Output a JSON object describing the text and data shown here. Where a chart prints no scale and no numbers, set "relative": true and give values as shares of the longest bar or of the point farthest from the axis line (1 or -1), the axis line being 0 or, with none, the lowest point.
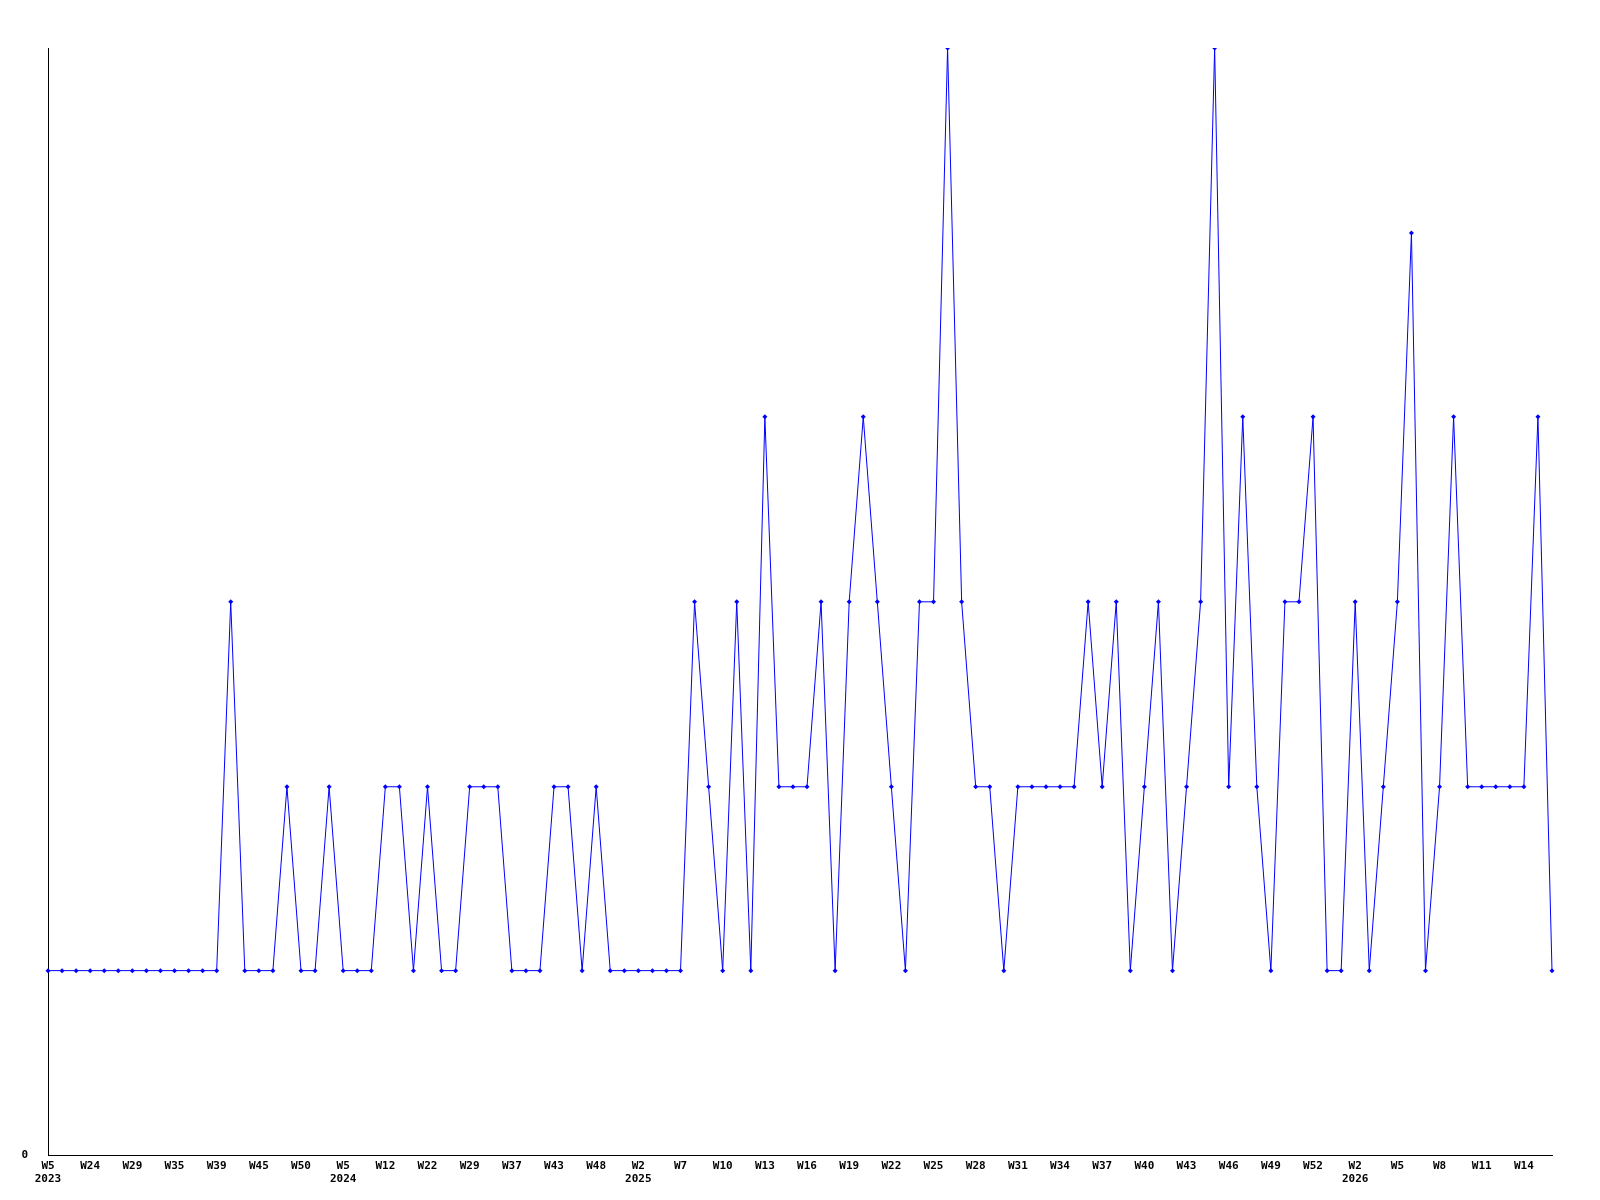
{
  "chart_data": {
    "type": "line",
    "relative": true,
    "color": "#0000ff",
    "marker": "diamond",
    "line_style": "solid",
    "grid": false,
    "legend": false,
    "annotations": [
      "0"
    ],
    "categories": [
      "W5\n2023",
      null,
      null,
      "W24",
      null,
      null,
      "W29",
      null,
      null,
      "W35",
      null,
      null,
      "W39",
      null,
      null,
      "W45",
      null,
      null,
      "W50",
      null,
      null,
      "W5\n2024",
      null,
      null,
      "W12",
      null,
      null,
      "W22",
      null,
      null,
      "W29",
      null,
      null,
      "W37",
      null,
      null,
      "W43",
      null,
      null,
      "W48",
      null,
      null,
      "W2\n2025",
      null,
      null,
      "W7",
      null,
      null,
      "W10",
      null,
      null,
      "W13",
      null,
      null,
      "W16",
      null,
      null,
      "W19",
      null,
      null,
      "W22",
      null,
      null,
      "W25",
      null,
      null,
      "W28",
      null,
      null,
      "W31",
      null,
      null,
      "W34",
      null,
      null,
      "W37",
      null,
      null,
      "W40",
      null,
      null,
      "W43",
      null,
      null,
      "W46",
      null,
      null,
      "W49",
      null,
      null,
      "W52",
      null,
      null,
      "W2\n2026",
      null,
      null,
      "W5",
      null,
      null,
      "W8",
      null,
      null,
      "W11",
      null,
      null,
      "W14",
      null,
      null
    ],
    "values": [
      0.167,
      0.167,
      0.167,
      0.167,
      0.167,
      0.167,
      0.167,
      0.167,
      0.167,
      0.167,
      0.167,
      0.167,
      0.167,
      0.5,
      0.167,
      0.167,
      0.167,
      0.333,
      0.167,
      0.167,
      0.333,
      0.167,
      0.167,
      0.167,
      0.333,
      0.333,
      0.167,
      0.333,
      0.167,
      0.167,
      0.333,
      0.333,
      0.333,
      0.167,
      0.167,
      0.167,
      0.333,
      0.333,
      0.167,
      0.333,
      0.167,
      0.167,
      0.167,
      0.167,
      0.167,
      0.167,
      0.5,
      0.333,
      0.167,
      0.5,
      0.167,
      0.667,
      0.333,
      0.333,
      0.333,
      0.5,
      0.167,
      0.5,
      0.667,
      0.5,
      0.333,
      0.167,
      0.5,
      0.5,
      1,
      0.5,
      0.333,
      0.333,
      0.167,
      0.333,
      0.333,
      0.333,
      0.333,
      0.333,
      0.5,
      0.333,
      0.5,
      0.167,
      0.333,
      0.5,
      0.167,
      0.333,
      0.5,
      1,
      0.333,
      0.667,
      0.333,
      0.167,
      0.5,
      0.5,
      0.667,
      0.167,
      0.167,
      0.5,
      0.167,
      0.333,
      0.5,
      0.833,
      0.167,
      0.333,
      0.667,
      0.333,
      0.333,
      0.333,
      0.333,
      0.333,
      0.667,
      0.167
    ]
  }
}
